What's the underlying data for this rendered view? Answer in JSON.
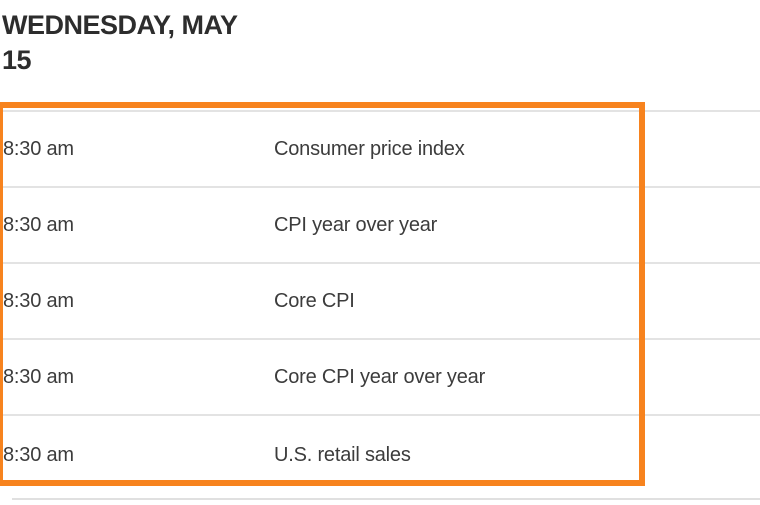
{
  "header": {
    "date_label": "WEDNESDAY, MAY 15"
  },
  "calendar": {
    "rows": [
      {
        "time": "8:30 am",
        "event": "Consumer price index"
      },
      {
        "time": "8:30 am",
        "event": "CPI year over year"
      },
      {
        "time": "8:30 am",
        "event": "Core CPI"
      },
      {
        "time": "8:30 am",
        "event": "Core CPI year over year"
      },
      {
        "time": "8:30 am",
        "event": "U.S. retail sales"
      }
    ]
  },
  "highlight": {
    "color": "#f7831e"
  },
  "colors": {
    "separator": "#e3e3e3",
    "header_text": "#2d2d2d",
    "row_text": "#3c3c3c",
    "background": "#ffffff"
  }
}
